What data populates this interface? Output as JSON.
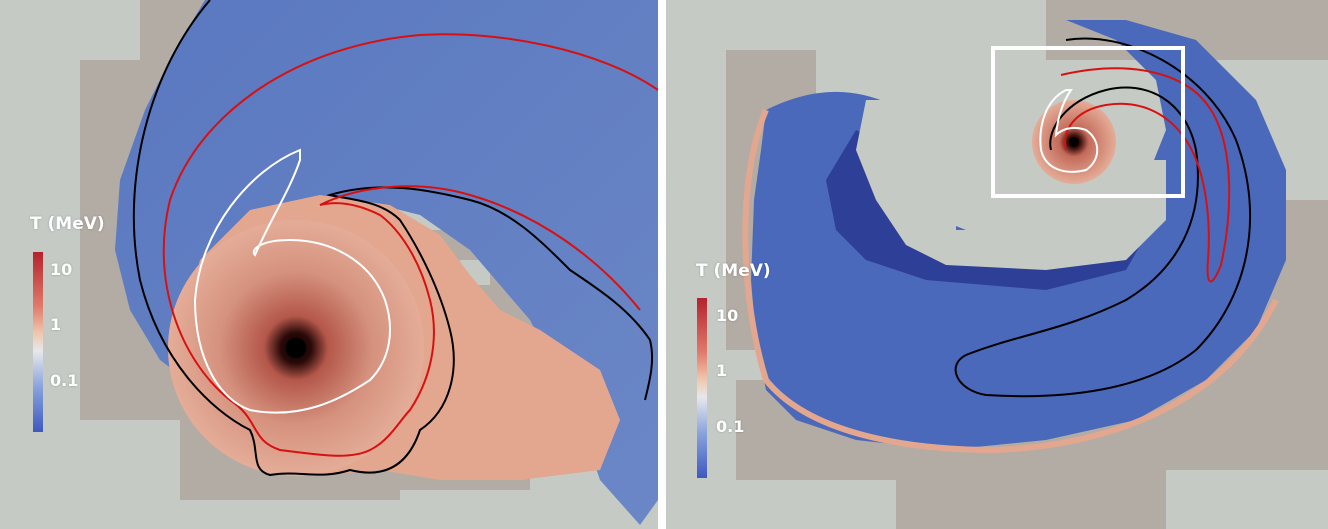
{
  "colorbar": {
    "title": "T (MeV)",
    "ticks": [
      "10",
      "1",
      "0.1"
    ],
    "colors": [
      "#b4222d",
      "#f0c5ad",
      "#3e58c0"
    ]
  },
  "panels": [
    {
      "name": "left",
      "view": "zoomed-in"
    },
    {
      "name": "right",
      "view": "zoomed-out",
      "inset": "white-box"
    }
  ],
  "palette": {
    "background": "#c5cac5",
    "grid_blocks": "#b2aca4",
    "cold_region": "#5f7fc4",
    "hot_region": "#e0a48e",
    "contour_black": "#000000",
    "contour_red": "#d81010",
    "contour_white": "#ffffff"
  }
}
